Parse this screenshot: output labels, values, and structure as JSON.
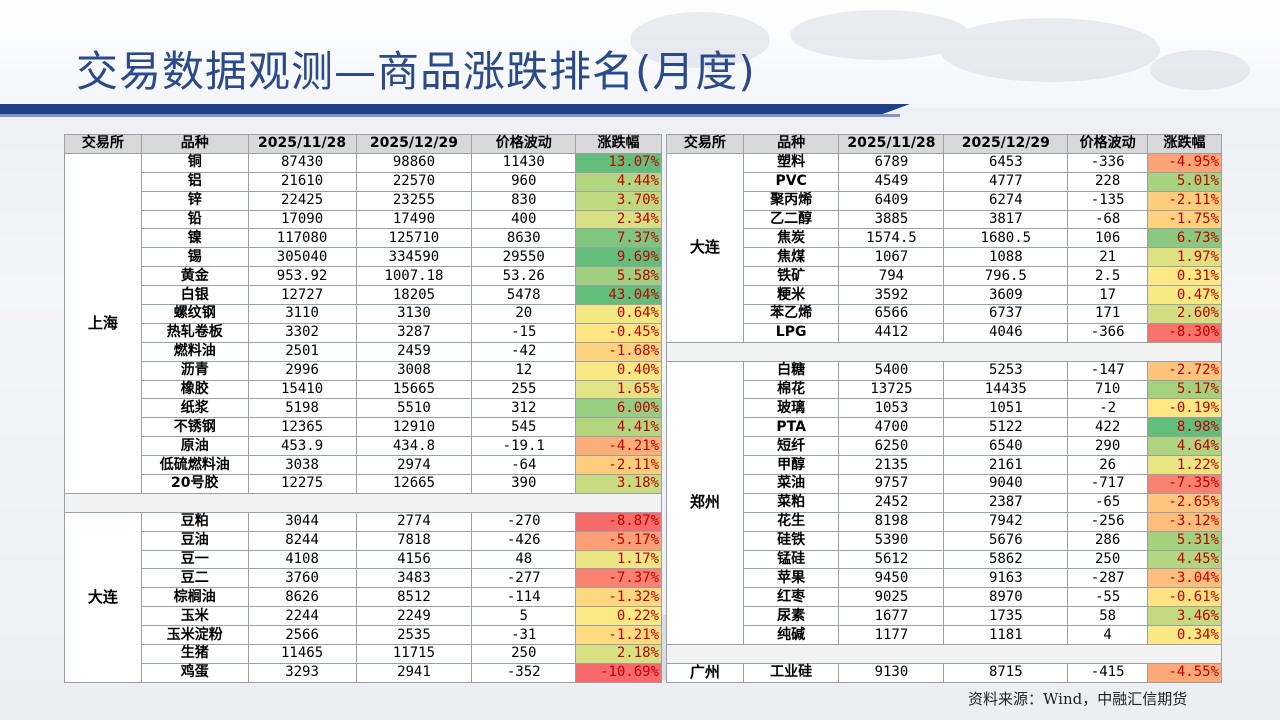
{
  "title": "交易数据观测—商品涨跌排名(月度)",
  "source": "资料来源：Wind，中融汇信期货",
  "colors": {
    "header_bg": "#d8d8d8",
    "title": "#2b4a8a",
    "band": "#1f3f86",
    "scale_green": "#63be7b",
    "scale_yellow": "#ffeb84",
    "scale_red": "#f8696b"
  },
  "headers": [
    "交易所",
    "品种",
    "2025/11/28",
    "2025/12/29",
    "价格波动",
    "涨跌幅"
  ],
  "left_table": {
    "groups": [
      {
        "exchange": "上海",
        "rows": [
          {
            "name": "铜",
            "d1": "87430",
            "d2": "98860",
            "chg": "11430",
            "pct": "13.07%",
            "v": 13.07
          },
          {
            "name": "铝",
            "d1": "21610",
            "d2": "22570",
            "chg": "960",
            "pct": "4.44%",
            "v": 4.44
          },
          {
            "name": "锌",
            "d1": "22425",
            "d2": "23255",
            "chg": "830",
            "pct": "3.70%",
            "v": 3.7
          },
          {
            "name": "铅",
            "d1": "17090",
            "d2": "17490",
            "chg": "400",
            "pct": "2.34%",
            "v": 2.34
          },
          {
            "name": "镍",
            "d1": "117080",
            "d2": "125710",
            "chg": "8630",
            "pct": "7.37%",
            "v": 7.37
          },
          {
            "name": "锡",
            "d1": "305040",
            "d2": "334590",
            "chg": "29550",
            "pct": "9.69%",
            "v": 9.69
          },
          {
            "name": "黄金",
            "d1": "953.92",
            "d2": "1007.18",
            "chg": "53.26",
            "pct": "5.58%",
            "v": 5.58
          },
          {
            "name": "白银",
            "d1": "12727",
            "d2": "18205",
            "chg": "5478",
            "pct": "43.04%",
            "v": 43.04
          },
          {
            "name": "螺纹钢",
            "d1": "3110",
            "d2": "3130",
            "chg": "20",
            "pct": "0.64%",
            "v": 0.64
          },
          {
            "name": "热轧卷板",
            "d1": "3302",
            "d2": "3287",
            "chg": "-15",
            "pct": "-0.45%",
            "v": -0.45
          },
          {
            "name": "燃料油",
            "d1": "2501",
            "d2": "2459",
            "chg": "-42",
            "pct": "-1.68%",
            "v": -1.68
          },
          {
            "name": "沥青",
            "d1": "2996",
            "d2": "3008",
            "chg": "12",
            "pct": "0.40%",
            "v": 0.4
          },
          {
            "name": "橡胶",
            "d1": "15410",
            "d2": "15665",
            "chg": "255",
            "pct": "1.65%",
            "v": 1.65
          },
          {
            "name": "纸浆",
            "d1": "5198",
            "d2": "5510",
            "chg": "312",
            "pct": "6.00%",
            "v": 6.0
          },
          {
            "name": "不锈钢",
            "d1": "12365",
            "d2": "12910",
            "chg": "545",
            "pct": "4.41%",
            "v": 4.41
          },
          {
            "name": "原油",
            "d1": "453.9",
            "d2": "434.8",
            "chg": "-19.1",
            "pct": "-4.21%",
            "v": -4.21
          },
          {
            "name": "低硫燃料油",
            "d1": "3038",
            "d2": "2974",
            "chg": "-64",
            "pct": "-2.11%",
            "v": -2.11
          },
          {
            "name": "20号胶",
            "d1": "12275",
            "d2": "12665",
            "chg": "390",
            "pct": "3.18%",
            "v": 3.18
          }
        ]
      },
      {
        "exchange": "大连",
        "rows": [
          {
            "name": "豆粕",
            "d1": "3044",
            "d2": "2774",
            "chg": "-270",
            "pct": "-8.87%",
            "v": -8.87
          },
          {
            "name": "豆油",
            "d1": "8244",
            "d2": "7818",
            "chg": "-426",
            "pct": "-5.17%",
            "v": -5.17
          },
          {
            "name": "豆一",
            "d1": "4108",
            "d2": "4156",
            "chg": "48",
            "pct": "1.17%",
            "v": 1.17
          },
          {
            "name": "豆二",
            "d1": "3760",
            "d2": "3483",
            "chg": "-277",
            "pct": "-7.37%",
            "v": -7.37
          },
          {
            "name": "棕榈油",
            "d1": "8626",
            "d2": "8512",
            "chg": "-114",
            "pct": "-1.32%",
            "v": -1.32
          },
          {
            "name": "玉米",
            "d1": "2244",
            "d2": "2249",
            "chg": "5",
            "pct": "0.22%",
            "v": 0.22
          },
          {
            "name": "玉米淀粉",
            "d1": "2566",
            "d2": "2535",
            "chg": "-31",
            "pct": "-1.21%",
            "v": -1.21
          },
          {
            "name": "生猪",
            "d1": "11465",
            "d2": "11715",
            "chg": "250",
            "pct": "2.18%",
            "v": 2.18
          },
          {
            "name": "鸡蛋",
            "d1": "3293",
            "d2": "2941",
            "chg": "-352",
            "pct": "-10.69%",
            "v": -10.69
          }
        ]
      }
    ]
  },
  "right_table": {
    "groups": [
      {
        "exchange": "大连",
        "rows": [
          {
            "name": "塑料",
            "d1": "6789",
            "d2": "6453",
            "chg": "-336",
            "pct": "-4.95%",
            "v": -4.95
          },
          {
            "name": "PVC",
            "d1": "4549",
            "d2": "4777",
            "chg": "228",
            "pct": "5.01%",
            "v": 5.01
          },
          {
            "name": "聚丙烯",
            "d1": "6409",
            "d2": "6274",
            "chg": "-135",
            "pct": "-2.11%",
            "v": -2.11
          },
          {
            "name": "乙二醇",
            "d1": "3885",
            "d2": "3817",
            "chg": "-68",
            "pct": "-1.75%",
            "v": -1.75
          },
          {
            "name": "焦炭",
            "d1": "1574.5",
            "d2": "1680.5",
            "chg": "106",
            "pct": "6.73%",
            "v": 6.73
          },
          {
            "name": "焦煤",
            "d1": "1067",
            "d2": "1088",
            "chg": "21",
            "pct": "1.97%",
            "v": 1.97
          },
          {
            "name": "铁矿",
            "d1": "794",
            "d2": "796.5",
            "chg": "2.5",
            "pct": "0.31%",
            "v": 0.31
          },
          {
            "name": "粳米",
            "d1": "3592",
            "d2": "3609",
            "chg": "17",
            "pct": "0.47%",
            "v": 0.47
          },
          {
            "name": "苯乙烯",
            "d1": "6566",
            "d2": "6737",
            "chg": "171",
            "pct": "2.60%",
            "v": 2.6
          },
          {
            "name": "LPG",
            "d1": "4412",
            "d2": "4046",
            "chg": "-366",
            "pct": "-8.30%",
            "v": -8.3
          }
        ]
      },
      {
        "exchange": "郑州",
        "rows": [
          {
            "name": "白糖",
            "d1": "5400",
            "d2": "5253",
            "chg": "-147",
            "pct": "-2.72%",
            "v": -2.72
          },
          {
            "name": "棉花",
            "d1": "13725",
            "d2": "14435",
            "chg": "710",
            "pct": "5.17%",
            "v": 5.17
          },
          {
            "name": "玻璃",
            "d1": "1053",
            "d2": "1051",
            "chg": "-2",
            "pct": "-0.19%",
            "v": -0.19
          },
          {
            "name": "PTA",
            "d1": "4700",
            "d2": "5122",
            "chg": "422",
            "pct": "8.98%",
            "v": 8.98
          },
          {
            "name": "短纤",
            "d1": "6250",
            "d2": "6540",
            "chg": "290",
            "pct": "4.64%",
            "v": 4.64
          },
          {
            "name": "甲醇",
            "d1": "2135",
            "d2": "2161",
            "chg": "26",
            "pct": "1.22%",
            "v": 1.22
          },
          {
            "name": "菜油",
            "d1": "9757",
            "d2": "9040",
            "chg": "-717",
            "pct": "-7.35%",
            "v": -7.35
          },
          {
            "name": "菜粕",
            "d1": "2452",
            "d2": "2387",
            "chg": "-65",
            "pct": "-2.65%",
            "v": -2.65
          },
          {
            "name": "花生",
            "d1": "8198",
            "d2": "7942",
            "chg": "-256",
            "pct": "-3.12%",
            "v": -3.12
          },
          {
            "name": "硅铁",
            "d1": "5390",
            "d2": "5676",
            "chg": "286",
            "pct": "5.31%",
            "v": 5.31
          },
          {
            "name": "锰硅",
            "d1": "5612",
            "d2": "5862",
            "chg": "250",
            "pct": "4.45%",
            "v": 4.45
          },
          {
            "name": "苹果",
            "d1": "9450",
            "d2": "9163",
            "chg": "-287",
            "pct": "-3.04%",
            "v": -3.04
          },
          {
            "name": "红枣",
            "d1": "9025",
            "d2": "8970",
            "chg": "-55",
            "pct": "-0.61%",
            "v": -0.61
          },
          {
            "name": "尿素",
            "d1": "1677",
            "d2": "1735",
            "chg": "58",
            "pct": "3.46%",
            "v": 3.46
          },
          {
            "name": "纯碱",
            "d1": "1177",
            "d2": "1181",
            "chg": "4",
            "pct": "0.34%",
            "v": 0.34
          }
        ]
      },
      {
        "exchange": "广州",
        "rows": [
          {
            "name": "工业硅",
            "d1": "9130",
            "d2": "8715",
            "chg": "-415",
            "pct": "-4.55%",
            "v": -4.55
          }
        ]
      }
    ]
  }
}
